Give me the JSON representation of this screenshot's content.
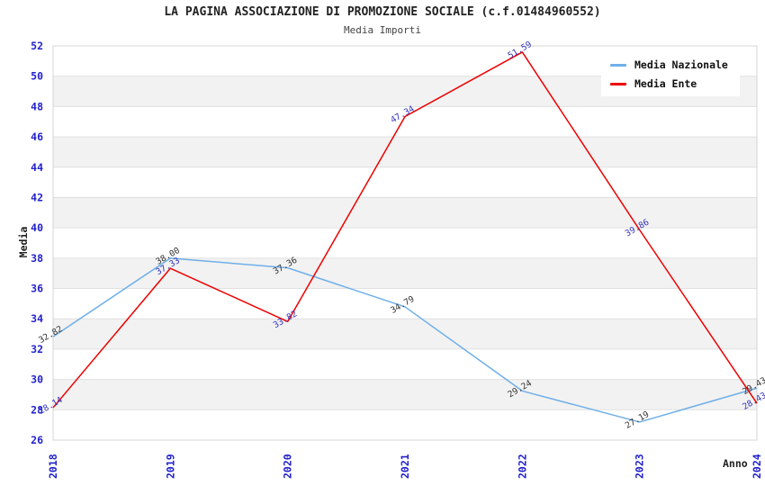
{
  "chart_data": {
    "type": "line",
    "title": "LA PAGINA ASSOCIAZIONE DI PROMOZIONE SOCIALE (c.f.01484960552)",
    "subtitle": "Media Importi",
    "xlabel": "Anno",
    "ylabel": "Media",
    "categories": [
      "2018",
      "2019",
      "2020",
      "2021",
      "2022",
      "2023",
      "2024"
    ],
    "y_ticks": [
      26,
      28,
      30,
      32,
      34,
      36,
      38,
      40,
      42,
      44,
      46,
      48,
      50,
      52
    ],
    "ylim": [
      26,
      52
    ],
    "grid": "horizontal-only",
    "legend_position": "top-right",
    "colors": {
      "band_fill": "#f2f2f2",
      "grid_line": "#e0e0e0",
      "plot_border": "#d4d4d4",
      "axis_tick_text": "#2222cc"
    },
    "series": [
      {
        "name": "Media Nazionale",
        "color": "#6fafe8",
        "label_color": "#333333",
        "values": [
          32.82,
          38.0,
          37.36,
          34.79,
          29.24,
          27.19,
          29.43
        ]
      },
      {
        "name": "Media Ente",
        "color": "#ee0000",
        "label_color": "#3434bb",
        "values": [
          28.14,
          37.33,
          33.82,
          47.34,
          51.59,
          39.86,
          28.43
        ]
      }
    ]
  }
}
